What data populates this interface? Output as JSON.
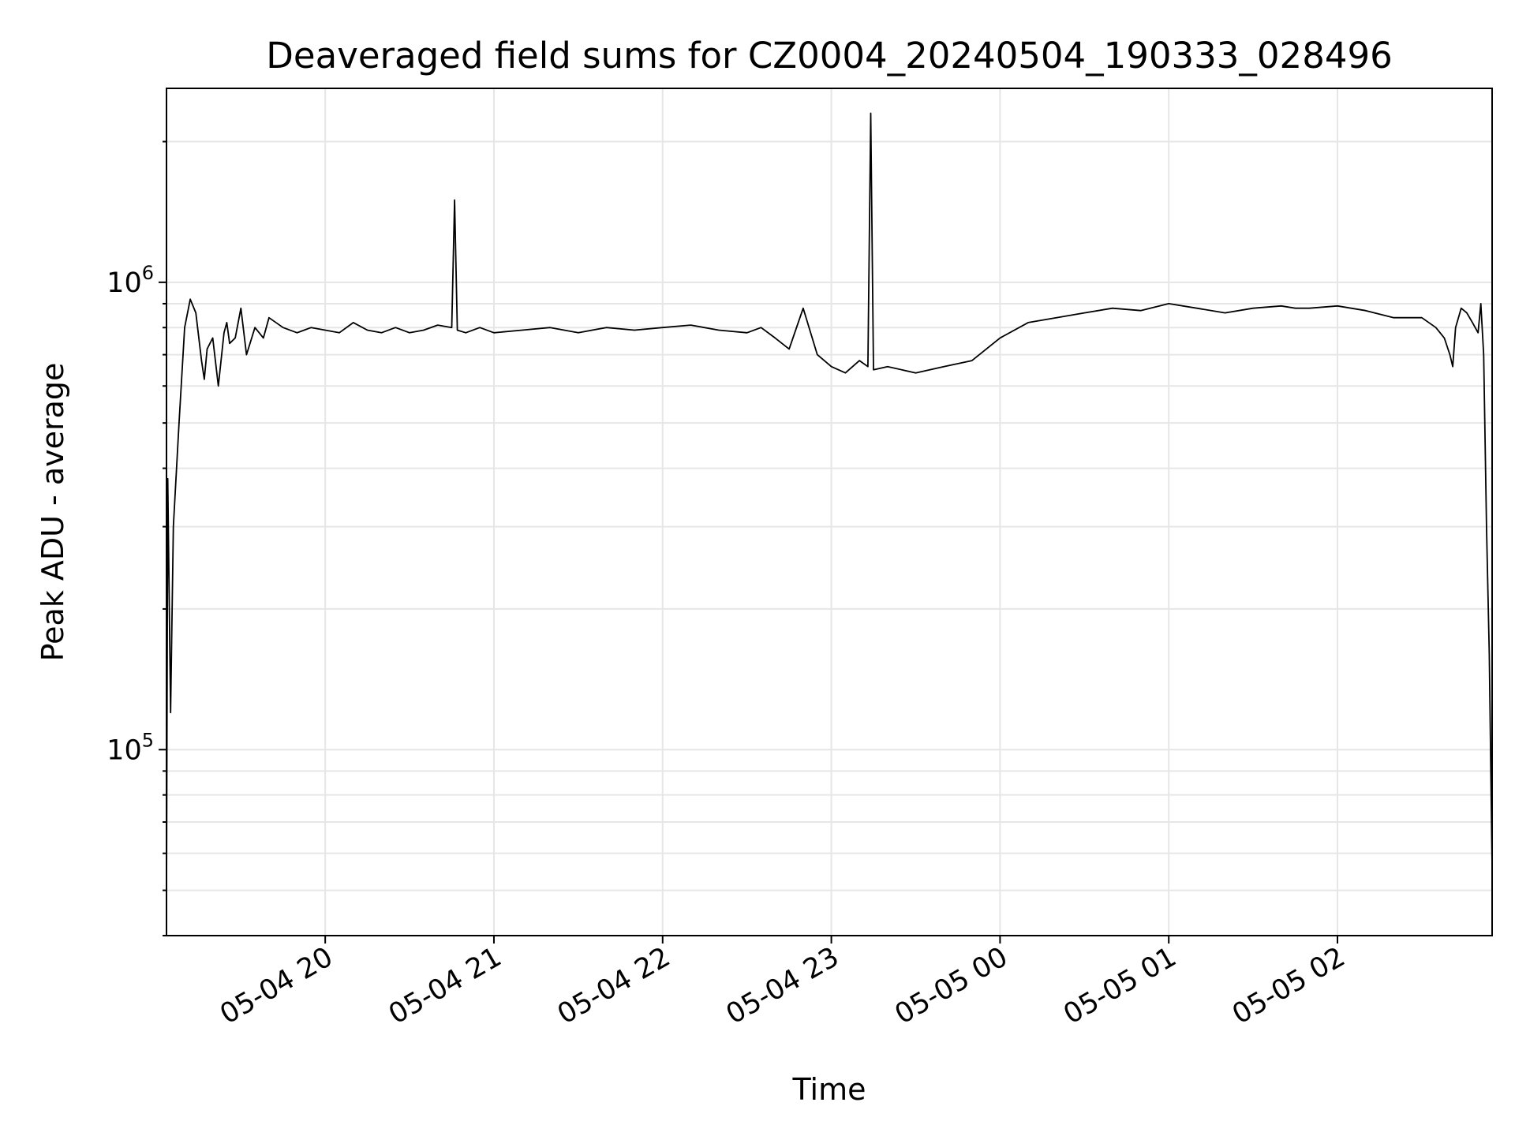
{
  "chart_data": {
    "type": "line",
    "title": "Deaveraged field sums for CZ0004_20240504_190333_028496",
    "xlabel": "Time",
    "ylabel": "Peak ADU - average",
    "yscale": "log",
    "xlim": [
      "2024-05-04 19:03:33",
      "2024-05-05 02:55:00"
    ],
    "ylim": [
      40000,
      2600000
    ],
    "grid": true,
    "line_color": "#000000",
    "grid_color": "#e6e6e6",
    "x_ticks": [
      {
        "value": "2024-05-04 20:00",
        "label": "05-04 20"
      },
      {
        "value": "2024-05-04 21:00",
        "label": "05-04 21"
      },
      {
        "value": "2024-05-04 22:00",
        "label": "05-04 22"
      },
      {
        "value": "2024-05-04 23:00",
        "label": "05-04 23"
      },
      {
        "value": "2024-05-05 00:00",
        "label": "05-05 00"
      },
      {
        "value": "2024-05-05 01:00",
        "label": "05-05 01"
      },
      {
        "value": "2024-05-05 02:00",
        "label": "05-05 02"
      }
    ],
    "y_ticks": [
      {
        "value": 100000,
        "base": "10",
        "exp": "5"
      },
      {
        "value": 1000000,
        "base": "10",
        "exp": "6"
      }
    ],
    "series": [
      {
        "x": [
          "2024-05-04 19:03:33",
          "2024-05-04 19:04:00",
          "2024-05-04 19:05:00",
          "2024-05-04 19:06:00",
          "2024-05-04 19:08:00",
          "2024-05-04 19:10:00",
          "2024-05-04 19:12:00",
          "2024-05-04 19:14:00",
          "2024-05-04 19:16:00",
          "2024-05-04 19:17:00",
          "2024-05-04 19:18:00",
          "2024-05-04 19:20:00",
          "2024-05-04 19:22:00",
          "2024-05-04 19:24:00",
          "2024-05-04 19:25:00",
          "2024-05-04 19:26:00",
          "2024-05-04 19:28:00",
          "2024-05-04 19:30:00",
          "2024-05-04 19:32:00",
          "2024-05-04 19:35:00",
          "2024-05-04 19:38:00",
          "2024-05-04 19:40:00",
          "2024-05-04 19:45:00",
          "2024-05-04 19:50:00",
          "2024-05-04 19:55:00",
          "2024-05-04 20:00:00",
          "2024-05-04 20:05:00",
          "2024-05-04 20:10:00",
          "2024-05-04 20:15:00",
          "2024-05-04 20:20:00",
          "2024-05-04 20:25:00",
          "2024-05-04 20:30:00",
          "2024-05-04 20:35:00",
          "2024-05-04 20:40:00",
          "2024-05-04 20:45:00",
          "2024-05-04 20:46:00",
          "2024-05-04 20:47:00",
          "2024-05-04 20:50:00",
          "2024-05-04 20:55:00",
          "2024-05-04 21:00:00",
          "2024-05-04 21:10:00",
          "2024-05-04 21:20:00",
          "2024-05-04 21:30:00",
          "2024-05-04 21:40:00",
          "2024-05-04 21:50:00",
          "2024-05-04 22:00:00",
          "2024-05-04 22:10:00",
          "2024-05-04 22:20:00",
          "2024-05-04 22:30:00",
          "2024-05-04 22:35:00",
          "2024-05-04 22:40:00",
          "2024-05-04 22:45:00",
          "2024-05-04 22:50:00",
          "2024-05-04 22:55:00",
          "2024-05-04 23:00:00",
          "2024-05-04 23:05:00",
          "2024-05-04 23:10:00",
          "2024-05-04 23:13:00",
          "2024-05-04 23:14:00",
          "2024-05-04 23:15:00",
          "2024-05-04 23:20:00",
          "2024-05-04 23:30:00",
          "2024-05-04 23:40:00",
          "2024-05-04 23:50:00",
          "2024-05-05 00:00:00",
          "2024-05-05 00:10:00",
          "2024-05-05 00:20:00",
          "2024-05-05 00:30:00",
          "2024-05-05 00:40:00",
          "2024-05-05 00:50:00",
          "2024-05-05 01:00:00",
          "2024-05-05 01:10:00",
          "2024-05-05 01:20:00",
          "2024-05-05 01:30:00",
          "2024-05-05 01:40:00",
          "2024-05-05 01:45:00",
          "2024-05-05 01:50:00",
          "2024-05-05 02:00:00",
          "2024-05-05 02:10:00",
          "2024-05-05 02:20:00",
          "2024-05-05 02:30:00",
          "2024-05-05 02:35:00",
          "2024-05-05 02:38:00",
          "2024-05-05 02:40:00",
          "2024-05-05 02:41:00",
          "2024-05-05 02:42:00",
          "2024-05-05 02:44:00",
          "2024-05-05 02:46:00",
          "2024-05-05 02:48:00",
          "2024-05-05 02:50:00",
          "2024-05-05 02:51:00",
          "2024-05-05 02:52:00",
          "2024-05-05 02:53:00",
          "2024-05-05 02:54:00",
          "2024-05-05 02:55:00"
        ],
        "y": [
          48000,
          380000,
          120000,
          300000,
          500000,
          800000,
          920000,
          860000,
          680000,
          620000,
          720000,
          760000,
          600000,
          780000,
          820000,
          740000,
          760000,
          880000,
          700000,
          800000,
          760000,
          840000,
          800000,
          780000,
          800000,
          790000,
          780000,
          820000,
          790000,
          780000,
          800000,
          780000,
          790000,
          810000,
          800000,
          1500000,
          790000,
          780000,
          800000,
          780000,
          790000,
          800000,
          780000,
          800000,
          790000,
          800000,
          810000,
          790000,
          780000,
          800000,
          760000,
          720000,
          880000,
          700000,
          660000,
          640000,
          680000,
          660000,
          2300000,
          650000,
          660000,
          640000,
          660000,
          680000,
          760000,
          820000,
          840000,
          860000,
          880000,
          870000,
          900000,
          880000,
          860000,
          880000,
          890000,
          880000,
          880000,
          890000,
          870000,
          840000,
          840000,
          800000,
          760000,
          700000,
          660000,
          800000,
          880000,
          860000,
          820000,
          780000,
          900000,
          700000,
          300000,
          160000,
          56000
        ]
      }
    ]
  }
}
